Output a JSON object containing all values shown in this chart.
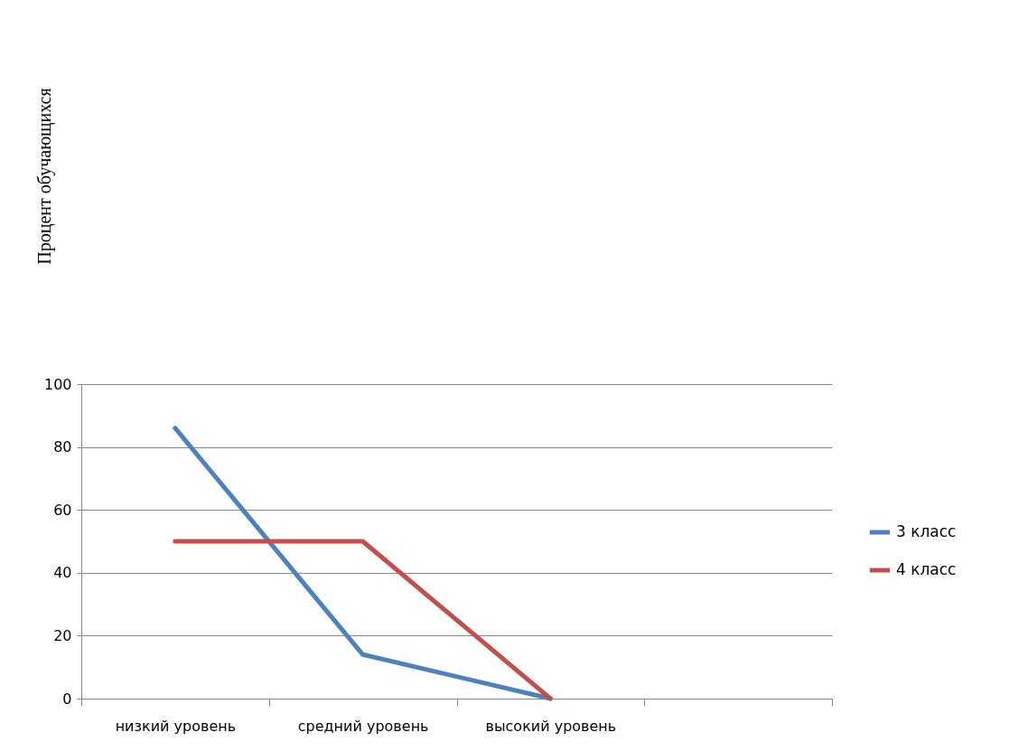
{
  "chart_data": {
    "type": "line",
    "annotations": [
      "Процент обучающихся"
    ],
    "categories": [
      "низкий уровень",
      "средний уровень",
      "высокий уровень",
      null
    ],
    "series": [
      {
        "name": "3 класс",
        "color": "#4f81bd",
        "values": [
          86,
          14,
          0,
          null
        ]
      },
      {
        "name": "4 класс",
        "color": "#c0504d",
        "values": [
          50,
          50,
          0,
          null
        ]
      }
    ],
    "ylim": [
      0,
      100
    ],
    "yticks": [
      0,
      20,
      40,
      60,
      80,
      100
    ],
    "grid": "y",
    "legend": "right",
    "marker": "none",
    "line_style": "solid"
  }
}
